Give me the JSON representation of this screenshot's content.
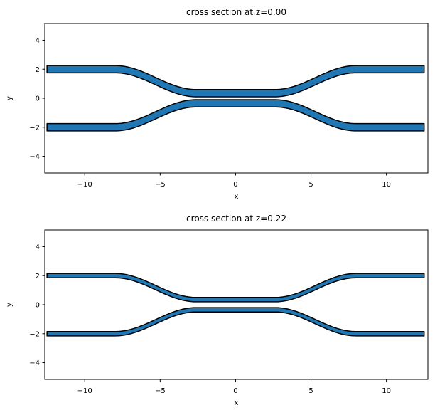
{
  "figure": {
    "background": "#ffffff",
    "kind": "matplotlib-figure"
  },
  "chart_data": [
    {
      "type": "area",
      "title": "cross section at z=0.00",
      "xlabel": "x",
      "ylabel": "y",
      "xlim": [
        -12.65,
        12.75
      ],
      "ylim": [
        -5.15,
        5.15
      ],
      "xticks": [
        -10,
        -5,
        0,
        5,
        10
      ],
      "xtick_labels": [
        "−10",
        "−5",
        "0",
        "5",
        "10"
      ],
      "yticks": [
        4,
        2,
        0,
        -2,
        -4
      ],
      "ytick_labels": [
        "4",
        "2",
        "0",
        "−2",
        "−4"
      ],
      "grid": false,
      "legend": "none",
      "fill_color": "#1f77b4",
      "edge_color": "#000000",
      "series": [
        {
          "name": "upper-waveguide",
          "sign": 1
        },
        {
          "name": "lower-waveguide",
          "sign": -1
        }
      ],
      "waveguide_geometry": {
        "x_min": -12.5,
        "x_max": 12.5,
        "straight_inner_halfspan": 2.6,
        "bend_outer_halfspan": 8.0,
        "y_center_offset": 0.35,
        "y_outer_offset": 2.0,
        "width": 0.5
      }
    },
    {
      "type": "area",
      "title": "cross section at z=0.22",
      "xlabel": "x",
      "ylabel": "y",
      "xlim": [
        -12.65,
        12.75
      ],
      "ylim": [
        -5.15,
        5.15
      ],
      "xticks": [
        -10,
        -5,
        0,
        5,
        10
      ],
      "xtick_labels": [
        "−10",
        "−5",
        "0",
        "5",
        "10"
      ],
      "yticks": [
        4,
        2,
        0,
        -2,
        -4
      ],
      "ytick_labels": [
        "4",
        "2",
        "0",
        "−2",
        "−4"
      ],
      "grid": false,
      "legend": "none",
      "fill_color": "#1f77b4",
      "edge_color": "#000000",
      "series": [
        {
          "name": "upper-waveguide",
          "sign": 1
        },
        {
          "name": "lower-waveguide",
          "sign": -1
        }
      ],
      "waveguide_geometry": {
        "x_min": -12.5,
        "x_max": 12.5,
        "straight_inner_halfspan": 2.6,
        "bend_outer_halfspan": 8.0,
        "y_center_offset": 0.35,
        "y_outer_offset": 2.0,
        "width": 0.3
      }
    }
  ]
}
